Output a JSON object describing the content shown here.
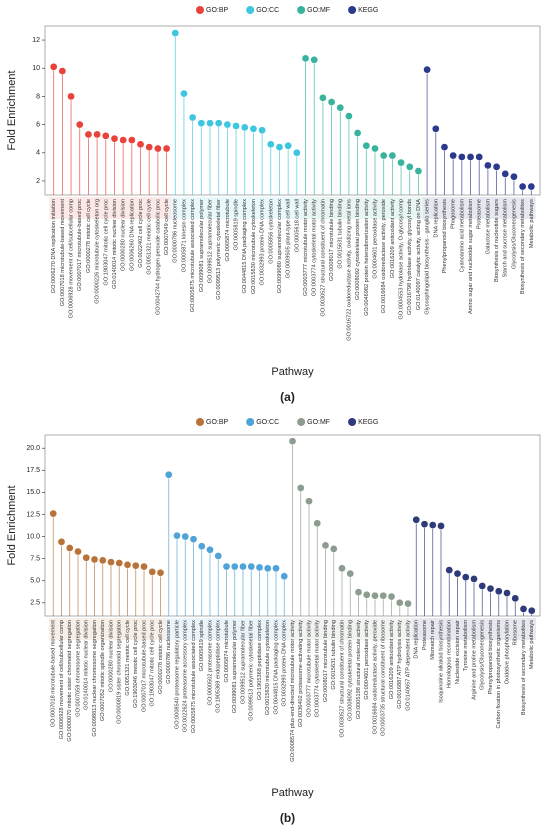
{
  "chart_data": [
    {
      "type": "lollipop",
      "panel_label": "(a)",
      "y_label": "Fold Enrichment",
      "x_label": "Pathway",
      "ylim": [
        1,
        13
      ],
      "yticks": [
        2,
        4,
        6,
        8,
        10,
        12
      ],
      "series": [
        {
          "name": "GO:BP",
          "color": "#e8423a",
          "categories": [
            "GO:0006270 DNA replication initiation",
            "GO:0007018 microtubule-based movement",
            "GO:0006928 movement of cell/subcellular comp",
            "GO:0007017 microtubule-based proc",
            "GO:0000278 mitotic cell cycle",
            "GO:0000226 microtubule cytoskeleton org",
            "GO:1903047 mitotic cell cycle proc",
            "GO:0140014 mitotic nuclear division",
            "GO:0000280 nuclear division",
            "GO:0006260 DNA replication",
            "GO:0022402 cell cycle proc",
            "GO:0051321 meiotic cell cycle",
            "GO:0042744 hydrogen peroxide catabolic proc",
            "GO:0007049 cell cycle"
          ],
          "values": [
            10.1,
            9.8,
            8.0,
            6.0,
            5.3,
            5.3,
            5.2,
            5.0,
            4.9,
            4.9,
            4.6,
            4.4,
            4.3,
            4.3
          ]
        },
        {
          "name": "GO:CC",
          "color": "#3ec6e0",
          "categories": [
            "GO:0000786 nucleosome",
            "GO:0005871 kinesin complex",
            "GO:0005875 microtubule associated complex",
            "GO:0099081 supramolecular polymer",
            "GO:0099512 supramolecular fiber",
            "GO:0099513 polymeric cytoskeletal fiber",
            "GO:0005874 microtubule",
            "GO:0005819 spindle",
            "GO:0044815 DNA packaging complex",
            "GO:0015630 microtubule cytoskeleton",
            "GO:0032993 protein-DNA complex",
            "GO:0005856 cytoskeleton",
            "GO:0099080 supramolecular complex",
            "GO:0009505 plant-type cell wall",
            "GO:0005618 cell wall"
          ],
          "values": [
            12.5,
            8.2,
            6.5,
            6.1,
            6.1,
            6.1,
            6.0,
            5.9,
            5.8,
            5.7,
            5.6,
            4.6,
            4.4,
            4.5,
            4.0
          ]
        },
        {
          "name": "GO:MF",
          "color": "#37b39e",
          "categories": [
            "GO:0003777 microtubule motor activity",
            "GO:0003774 cytoskeletal motor activity",
            "GO:0030527 structural constituent of chromatin",
            "GO:0008017 microtubule binding",
            "GO:0015631 tubulin binding",
            "GO:0016722 oxidoreductase activity, oxidizing metal ions",
            "GO:0008092 cytoskeletal protein binding",
            "GO:0046982 protein heterodimerization activity",
            "GO:0004601 peroxidase activity",
            "GO:0016684 oxidoreductase activity, peroxide",
            "GO:0016209 antioxidant activity",
            "GO:0004553 hydrolase activity, O-glycosyl comp",
            "GO:0016798 hydrolase activity, glycosyl bonds",
            "GO:0140097 catalytic activity, acting on DNA"
          ],
          "values": [
            10.7,
            10.6,
            7.9,
            7.6,
            7.2,
            6.6,
            5.4,
            4.5,
            4.3,
            3.8,
            3.8,
            3.3,
            3.0,
            2.7
          ]
        },
        {
          "name": "KEGG",
          "color": "#2b3a8c",
          "categories": [
            "Glycosphingolipid biosynthesis - ganglio series",
            "DNA replication",
            "Phenylpropanoid biosynthesis",
            "Phagosome",
            "Cyanoamino acid metabolism",
            "Amino sugar and nucleotide sugar metabolism",
            "Proteasome",
            "Galactose metabolism",
            "Biosynthesis of nucleotide sugars",
            "Starch and sucrose metabolism",
            "Glycolysis/Gluconeogenesis",
            "Biosynthesis of secondary metabolites",
            "Metabolic pathways"
          ],
          "values": [
            9.9,
            5.7,
            4.4,
            3.8,
            3.7,
            3.7,
            3.7,
            3.1,
            3.0,
            2.5,
            2.3,
            1.6,
            1.6
          ]
        }
      ]
    },
    {
      "type": "lollipop",
      "panel_label": "(b)",
      "y_label": "Fold Enrichment",
      "x_label": "Pathway",
      "ylim": [
        1,
        21.5
      ],
      "yticks": [
        2.5,
        {
          "value": 5,
          "label": "5.0"
        },
        7.5,
        {
          "value": 10,
          "label": "10.0"
        },
        12.5,
        {
          "value": 15,
          "label": "15.0"
        },
        17.5,
        {
          "value": 20,
          "label": "20.0"
        }
      ],
      "series": [
        {
          "name": "GO:BP",
          "color": "#b8733a",
          "categories": [
            "GO:0007018 microtubule-based movement",
            "GO:0006928 movement of cell/subcellular comp",
            "GO:0000070 mitotic sister chromatid segregation",
            "GO:0007059 chromosome segregation",
            "GO:0140014 mitotic nuclear division",
            "GO:0098813 nuclear chromosome segregation",
            "GO:0007052 mitotic spindle organization",
            "GO:0000280 nuclear division",
            "GO:0000819 sister chromatid segregation",
            "GO:0051321 meiotic cell cycle",
            "GO:1903046 meiotic cell cycle proc",
            "GO:0007017 microtubule-based proc",
            "GO:1903047 mitotic cell cycle proc",
            "GO:0000278 mitotic cell cycle"
          ],
          "values": [
            12.6,
            9.4,
            8.7,
            8.3,
            7.6,
            7.4,
            7.3,
            7.1,
            7.0,
            6.8,
            6.7,
            6.6,
            6.0,
            5.9
          ]
        },
        {
          "name": "GO:CC",
          "color": "#4fa3d9",
          "categories": [
            "GO:0000786 nucleosome",
            "GO:0008540 proteasome regulatory particle",
            "GO:0022624 proteasome accessory complex",
            "GO:0005875 microtubule associated complex",
            "GO:0005819 spindle",
            "GO:0000502 proteasome complex",
            "GO:1905369 endopeptidase complex",
            "GO:0005874 microtubule",
            "GO:0099081 supramolecular polymer",
            "GO:0099512 supramolecular fiber",
            "GO:0099513 polymeric cytoskeletal fiber",
            "GO:1905368 peptidase complex",
            "GO:0015630 microtubule cytoskeleton",
            "GO:0044815 DNA packaging complex",
            "GO:0032993 protein-DNA complex"
          ],
          "values": [
            17.0,
            10.1,
            10.0,
            9.7,
            8.9,
            8.5,
            7.8,
            6.6,
            6.6,
            6.6,
            6.6,
            6.5,
            6.4,
            6.4,
            5.5
          ]
        },
        {
          "name": "GO:MF",
          "color": "#8c9c8e",
          "categories": [
            "GO:0008574 plus-end-directed microtubule motor activity",
            "GO:0036402 proteasome-activating activity",
            "GO:0003777 microtubule motor activity",
            "GO:0003774 cytoskeletal motor activity",
            "GO:0008017 microtubule binding",
            "GO:0015631 tubulin binding",
            "GO:0030527 structural constituent of chromatin",
            "GO:0008092 cytoskeletal protein binding",
            "GO:0005198 structural molecule activity",
            "GO:0004601 peroxidase activity",
            "GO:0016684 oxidoreductase activity, peroxide",
            "GO:0003735 structural constituent of ribosome",
            "GO:0016209 antioxidant activity",
            "GO:0016887 ATP hydrolysis activity",
            "GO:0140657 ATP-dependent activity"
          ],
          "values": [
            20.8,
            15.5,
            14.0,
            11.5,
            9.0,
            8.6,
            6.4,
            5.8,
            3.7,
            3.4,
            3.3,
            3.3,
            3.2,
            2.5,
            2.4
          ]
        },
        {
          "name": "KEGG",
          "color": "#2e3a7a",
          "categories": [
            "DNA replication",
            "Proteasome",
            "Mismatch repair",
            "Isoquinoline alkaloid biosynthesis",
            "Homologous recombination",
            "Nucleotide excision repair",
            "Tyrosine metabolism",
            "Arginine and proline metabolism",
            "Glycolysis/Gluconeogenesis",
            "Phenylpropanoid biosynthesis",
            "Carbon fixation in photosynthetic organisms",
            "Oxidative phosphorylation",
            "Ribosome",
            "Biosynthesis of secondary metabolites",
            "Metabolic pathways"
          ],
          "values": [
            11.9,
            11.4,
            11.3,
            11.2,
            6.2,
            5.8,
            5.4,
            5.2,
            4.4,
            4.1,
            3.8,
            3.6,
            3.0,
            1.8,
            1.6
          ]
        }
      ]
    }
  ]
}
